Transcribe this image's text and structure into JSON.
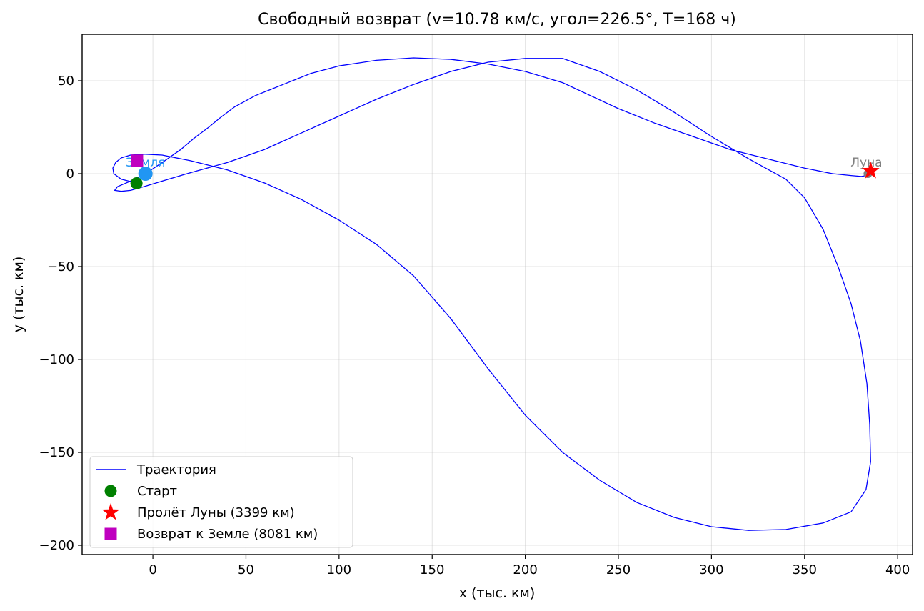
{
  "chart_data": {
    "type": "line",
    "title": "Свободный возврат (v=10.78 км/с, угол=226.5°, T=168 ч)",
    "xlabel": "x (тыс. км)",
    "ylabel": "y (тыс. км)",
    "xlim": [
      -38,
      408
    ],
    "ylim": [
      -205,
      75
    ],
    "xticks": [
      0,
      50,
      100,
      150,
      200,
      250,
      300,
      350,
      400
    ],
    "xtick_labels": [
      "0",
      "50",
      "100",
      "150",
      "200",
      "250",
      "300",
      "350",
      "400"
    ],
    "yticks": [
      50,
      0,
      -50,
      -100,
      -150,
      -200
    ],
    "ytick_labels": [
      "50",
      "0",
      "−50",
      "−100",
      "−150",
      "−200"
    ],
    "grid": true,
    "legend_position": "lower-left",
    "series": [
      {
        "name": "Траектория",
        "color": "#0000ff",
        "x": [
          -9.0,
          -17,
          -21,
          -21.5,
          -20,
          -17,
          -12,
          -5,
          5,
          20,
          40,
          60,
          80,
          100,
          120,
          140,
          160,
          180,
          200,
          220,
          240,
          260,
          280,
          300,
          320,
          340,
          360,
          375,
          383,
          385.5,
          385,
          383.5,
          380,
          375,
          368,
          360,
          350,
          340,
          320,
          300,
          280,
          260,
          240,
          220,
          200,
          180,
          160,
          140,
          120,
          100,
          80,
          60,
          40,
          20,
          5,
          -5,
          -12,
          -17,
          -20.5,
          -19,
          -12,
          -4,
          5,
          15,
          22,
          30,
          36,
          44,
          55,
          70,
          85,
          100,
          120,
          140,
          160,
          180,
          200,
          220,
          235,
          250,
          270,
          290,
          310,
          330,
          350,
          365,
          375,
          380.5,
          383,
          384.5
        ],
        "y": [
          -5,
          -3,
          0,
          3,
          6,
          8.5,
          10,
          10.5,
          10,
          7,
          2,
          -5,
          -14,
          -25,
          -38,
          -55,
          -78,
          -105,
          -130,
          -150,
          -165,
          -177,
          -185,
          -190,
          -192,
          -191.5,
          -188,
          -182,
          -170,
          -155,
          -135,
          -113,
          -90,
          -70,
          -50,
          -30,
          -13,
          -3,
          8,
          20,
          33,
          45,
          55,
          62,
          62,
          60,
          55,
          48,
          40,
          31,
          22,
          13,
          6,
          0.5,
          -4,
          -7,
          -9,
          -9.5,
          -9,
          -7,
          -4,
          0,
          6,
          13,
          19,
          25,
          30,
          36,
          42,
          48,
          54,
          58,
          61,
          62.3,
          61.5,
          59,
          55,
          49,
          42,
          35,
          27,
          20,
          13,
          8,
          3,
          0,
          -1,
          -1.5,
          -1,
          2
        ],
        "note": "trajectory points read off plot"
      }
    ],
    "markers": [
      {
        "name": "Старт",
        "shape": "circle",
        "color": "#008000",
        "x": -8.8,
        "y": -5.2
      },
      {
        "name": "Пролёт Луны (3399 км)",
        "shape": "star",
        "color": "#ff0000",
        "x": 385.5,
        "y": 1.5
      },
      {
        "name": "Возврат к Земле (8081 км)",
        "shape": "square",
        "color": "#bf00bf",
        "x": -8.5,
        "y": 7
      }
    ],
    "bodies": [
      {
        "name": "Земля",
        "color": "#2196f3",
        "x": -4,
        "y": 0
      },
      {
        "name": "Луна",
        "color": "#7f7f7f",
        "x": 384,
        "y": 0
      }
    ]
  }
}
